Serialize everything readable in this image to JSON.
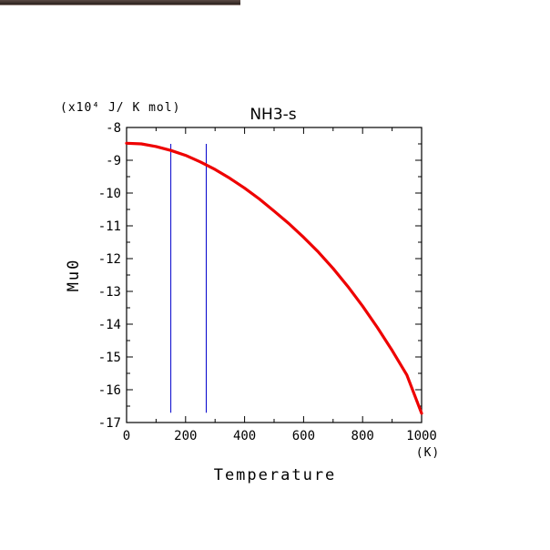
{
  "chart_data": {
    "type": "line",
    "title": "NH3-s",
    "xlabel": "Temperature",
    "ylabel": "Mu0",
    "x_unit": "(K)",
    "y_unit": "(x10⁴ J/ K mol)",
    "xlim": [
      0,
      1000
    ],
    "ylim": [
      -17,
      -8
    ],
    "x_ticks": [
      "0",
      "200",
      "400",
      "600",
      "800",
      "1000"
    ],
    "y_ticks": [
      "-8",
      "-9",
      "-10",
      "-11",
      "-12",
      "-13",
      "-14",
      "-15",
      "-16",
      "-17"
    ],
    "grid": false,
    "series": [
      {
        "color": "#ee0000",
        "x": [
          0,
          50,
          100,
          150,
          200,
          250,
          300,
          350,
          400,
          450,
          500,
          550,
          600,
          650,
          700,
          750,
          800,
          850,
          900,
          950,
          1000
        ],
        "y": [
          -8.48,
          -8.5,
          -8.58,
          -8.7,
          -8.85,
          -9.05,
          -9.28,
          -9.55,
          -9.85,
          -10.18,
          -10.55,
          -10.93,
          -11.35,
          -11.8,
          -12.3,
          -12.85,
          -13.45,
          -14.1,
          -14.8,
          -15.55,
          -16.72
        ]
      }
    ],
    "vertical_lines": [
      {
        "x": 150,
        "color": "#0000cc"
      },
      {
        "x": 270,
        "color": "#0000cc"
      }
    ]
  }
}
